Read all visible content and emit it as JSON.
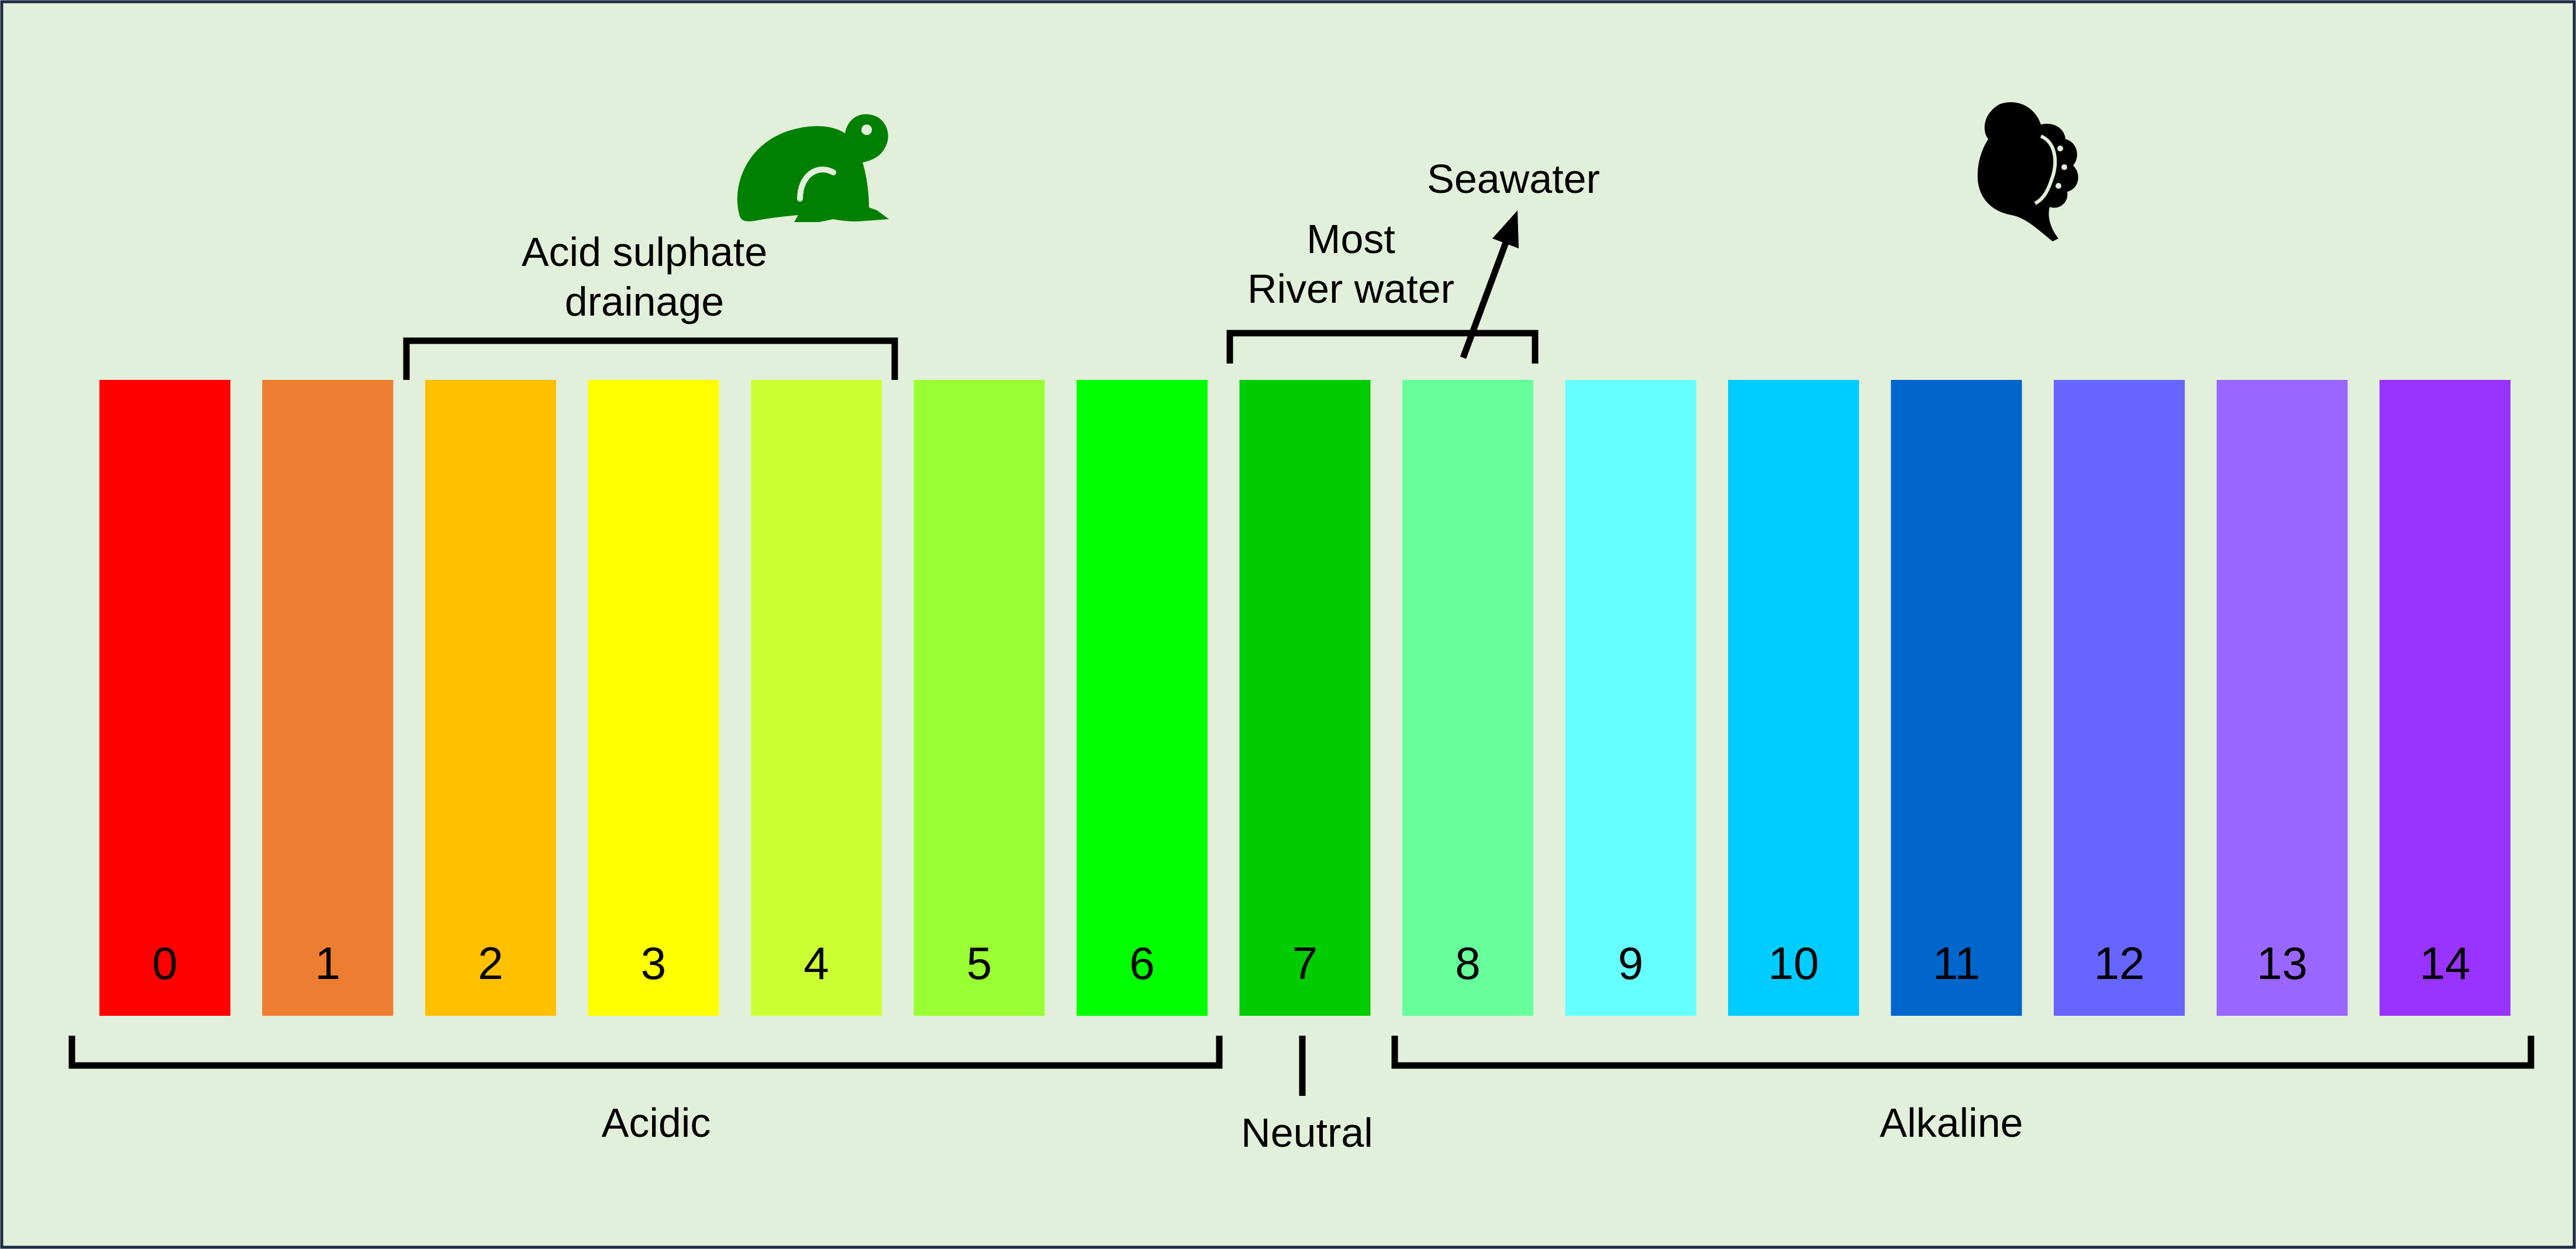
{
  "scale": {
    "bars": [
      {
        "value": "0",
        "color": "#ff0000"
      },
      {
        "value": "1",
        "color": "#ed7d31"
      },
      {
        "value": "2",
        "color": "#ffc000"
      },
      {
        "value": "3",
        "color": "#ffff00"
      },
      {
        "value": "4",
        "color": "#ccff33"
      },
      {
        "value": "5",
        "color": "#99ff33"
      },
      {
        "value": "6",
        "color": "#00ff00"
      },
      {
        "value": "7",
        "color": "#00cc00"
      },
      {
        "value": "8",
        "color": "#66ff99"
      },
      {
        "value": "9",
        "color": "#66ffff"
      },
      {
        "value": "10",
        "color": "#00ccff"
      },
      {
        "value": "11",
        "color": "#0066cc"
      },
      {
        "value": "12",
        "color": "#6666ff"
      },
      {
        "value": "13",
        "color": "#9966ff"
      },
      {
        "value": "14",
        "color": "#9933ff"
      }
    ]
  },
  "annotations": {
    "acid_sulphate": {
      "line1": "Acid sulphate",
      "line2": "drainage"
    },
    "river_water": {
      "line1": "Most",
      "line2": "River water"
    },
    "seawater": "Seawater"
  },
  "regions": {
    "acidic": "Acidic",
    "neutral": "Neutral",
    "alkaline": "Alkaline"
  },
  "icons": {
    "frog": {
      "name": "frog-icon",
      "color": "#008000"
    },
    "shell": {
      "name": "shell-icon",
      "color": "#000000"
    }
  }
}
